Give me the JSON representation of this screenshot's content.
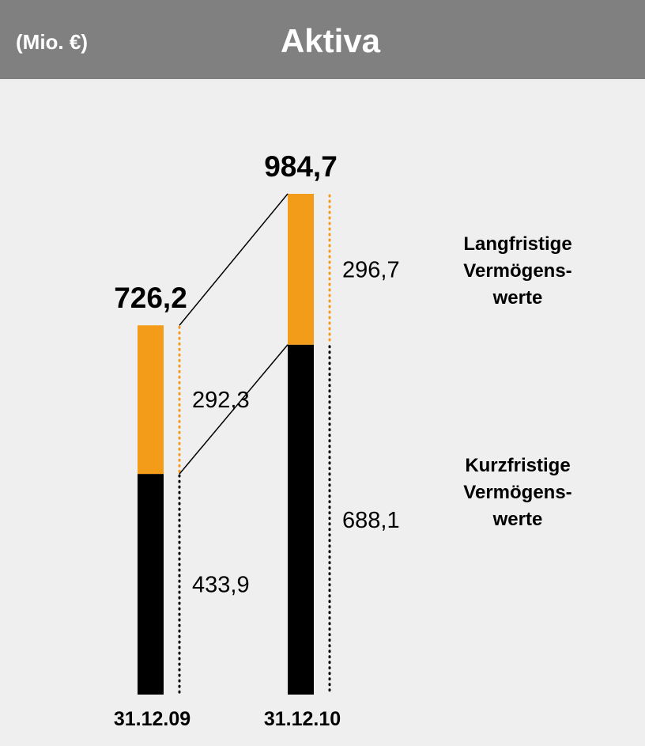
{
  "chart_data": {
    "type": "bar",
    "stacked": true,
    "title": "Aktiva",
    "unit_label": "(Mio. €)",
    "categories": [
      "31.12.09",
      "31.12.10"
    ],
    "series": [
      {
        "name": "Kurzfristige Vermögens-werte",
        "color": "#000000",
        "values": [
          433.9,
          688.1
        ],
        "value_labels": [
          "433,9",
          "688,1"
        ]
      },
      {
        "name": "Langfristige Vermögens-werte",
        "color": "#f39c1a",
        "values": [
          292.3,
          296.7
        ],
        "value_labels": [
          "292,3",
          "296,7"
        ]
      }
    ],
    "totals": [
      726.2,
      984.7
    ],
    "total_labels": [
      "726,2",
      "984,7"
    ]
  }
}
